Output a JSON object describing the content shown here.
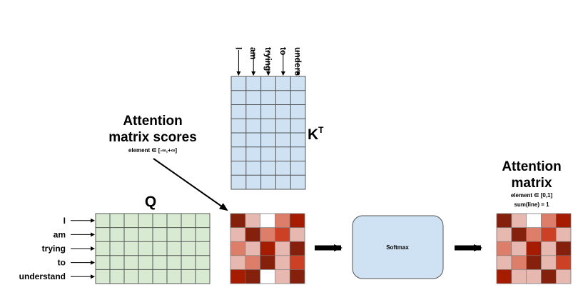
{
  "tokens": [
    "I",
    "am",
    "trying",
    "to",
    "understand"
  ],
  "labels": {
    "q": "Q",
    "k": "K",
    "k_sup": "T",
    "softmax": "Softmax"
  },
  "scores_title": {
    "line1": "Attention",
    "line2": "matrix scores",
    "element": "element ∈ [-∞,+∞]"
  },
  "attn_title": {
    "line1": "Attention",
    "line2": "matrix",
    "element": "element ∈ [0,1]",
    "sum": "sum(line) = 1"
  },
  "colors": {
    "q_fill": "#d9ead3",
    "k_fill": "#cfe2f3",
    "softmax_fill": "#cfe2f3",
    "grid_stroke": "#555555",
    "heat_palette": [
      "#ffffff",
      "#e6b8af",
      "#dd7e6b",
      "#cc4125",
      "#a61c00",
      "#85200c"
    ]
  },
  "scores_heat": [
    [
      5,
      1,
      0,
      2,
      4
    ],
    [
      1,
      5,
      2,
      3,
      1
    ],
    [
      2,
      1,
      4,
      1,
      5
    ],
    [
      1,
      2,
      5,
      1,
      3
    ],
    [
      4,
      5,
      0,
      1,
      5
    ]
  ],
  "attention_heat": [
    [
      5,
      1,
      0,
      2,
      4
    ],
    [
      1,
      5,
      2,
      3,
      1
    ],
    [
      2,
      1,
      4,
      1,
      5
    ],
    [
      1,
      2,
      5,
      1,
      3
    ],
    [
      4,
      1,
      1,
      5,
      1
    ]
  ]
}
